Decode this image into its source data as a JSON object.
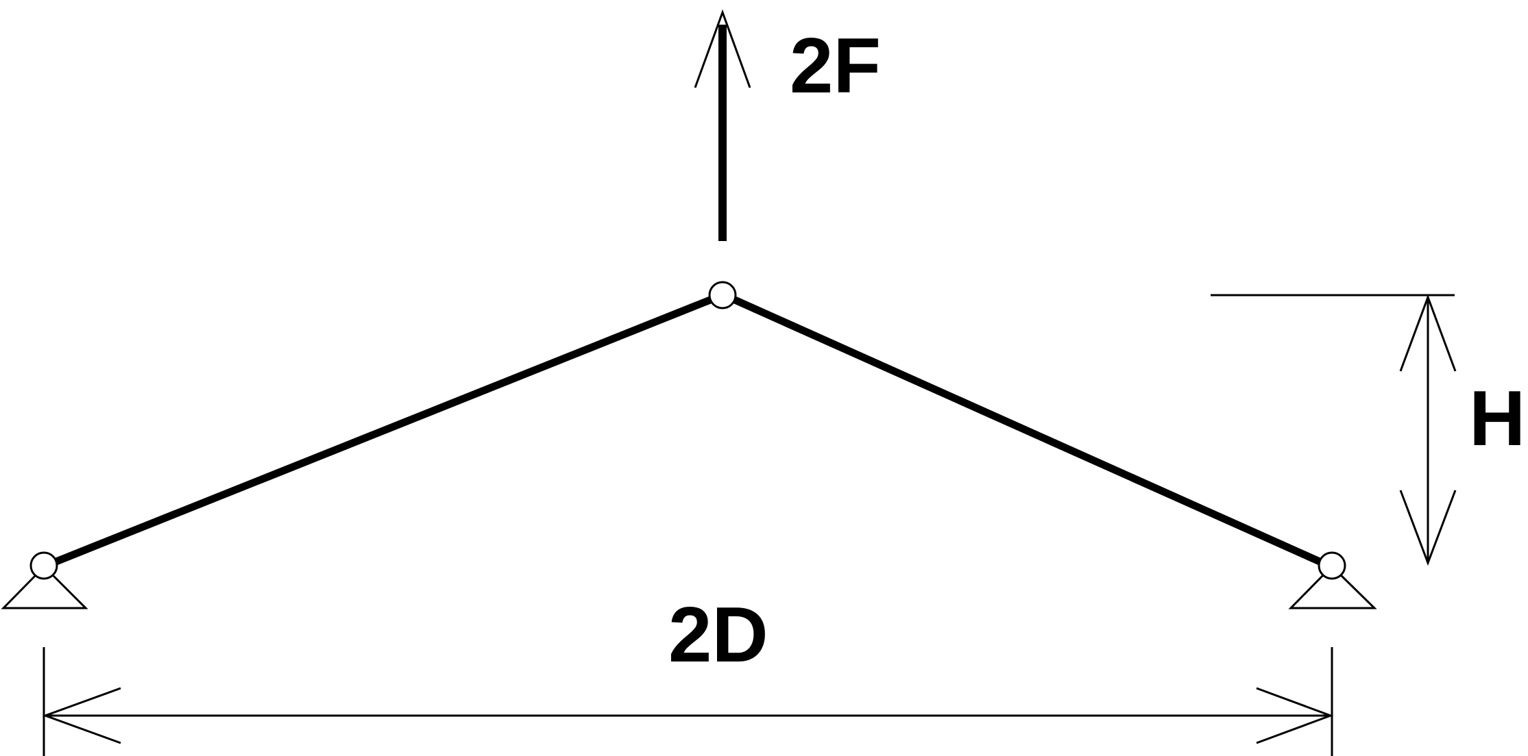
{
  "labels": {
    "force": "2F",
    "height": "H",
    "span": "2D"
  },
  "colors": {
    "stroke": "#000000",
    "background": "#ffffff"
  }
}
